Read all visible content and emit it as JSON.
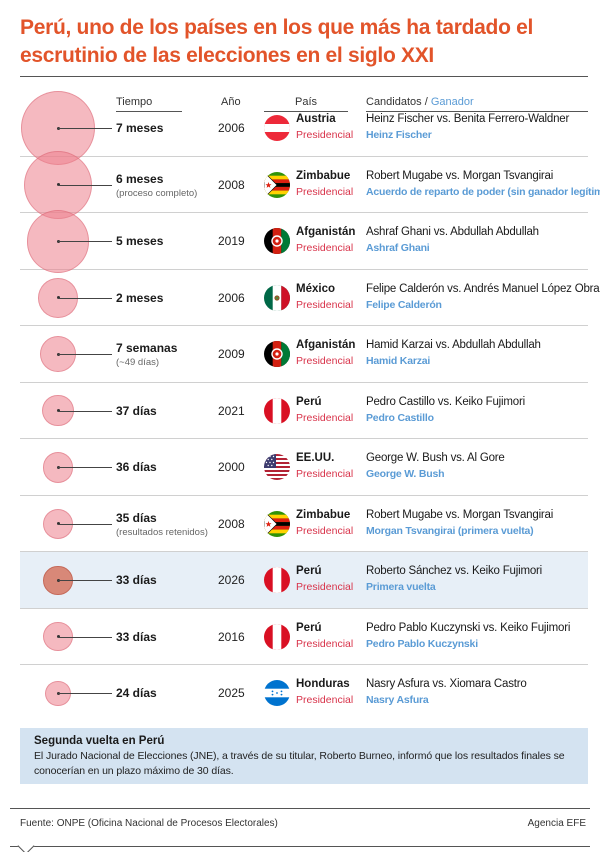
{
  "title": "Perú, uno de los países en los que más ha tardado el escrutinio de las elecciones en el siglo XXI",
  "columns": {
    "tiempo": "Tiempo",
    "anio": "Año",
    "pais": "País",
    "candidatos": "Candidatos /",
    "ganador": "Ganador"
  },
  "chart_data": {
    "type": "bubble",
    "title": "Perú, uno de los países en los que más ha tardado el escrutinio de las elecciones en el siglo XXI",
    "size_unit": "días",
    "rows": [
      {
        "time_label": "7 meses",
        "note": "",
        "days": 210,
        "year": "2006",
        "country": "Austria",
        "election": "Presidencial",
        "flag": "austria-flag-icon",
        "candidates": "Heinz Fischer vs. Benita Ferrero-Waldner",
        "winner": "Heinz Fischer",
        "highlight": false
      },
      {
        "time_label": "6 meses",
        "note": "(proceso completo)",
        "days": 180,
        "year": "2008",
        "country": "Zimbabue",
        "election": "Presidencial",
        "flag": "zimbabwe-flag-icon",
        "candidates": "Robert Mugabe vs. Morgan Tsvangirai",
        "winner": "Acuerdo de reparto de poder (sin ganador legítimo)",
        "highlight": false
      },
      {
        "time_label": "5 meses",
        "note": "",
        "days": 150,
        "year": "2019",
        "country": "Afganistán",
        "election": "Presidencial",
        "flag": "afghanistan-flag-icon",
        "candidates": "Ashraf Ghani vs. Abdullah Abdullah",
        "winner": "Ashraf Ghani",
        "highlight": false
      },
      {
        "time_label": "2 meses",
        "note": "",
        "days": 60,
        "year": "2006",
        "country": "México",
        "election": "Presidencial",
        "flag": "mexico-flag-icon",
        "candidates": "Felipe Calderón vs. Andrés Manuel López Obrador",
        "winner": "Felipe Calderón",
        "highlight": false
      },
      {
        "time_label": "7 semanas",
        "note": "(~49 días)",
        "days": 49,
        "year": "2009",
        "country": "Afganistán",
        "election": "Presidencial",
        "flag": "afghanistan-flag-icon",
        "candidates": "Hamid Karzai vs. Abdullah Abdullah",
        "winner": "Hamid Karzai",
        "highlight": false
      },
      {
        "time_label": "37 días",
        "note": "",
        "days": 37,
        "year": "2021",
        "country": "Perú",
        "election": "Presidencial",
        "flag": "peru-flag-icon",
        "candidates": "Pedro Castillo vs. Keiko Fujimori",
        "winner": "Pedro Castillo",
        "highlight": false
      },
      {
        "time_label": "36 días",
        "note": "",
        "days": 36,
        "year": "2000",
        "country": "EE.UU.",
        "election": "Presidencial",
        "flag": "usa-flag-icon",
        "candidates": "George W. Bush vs. Al Gore",
        "winner": "George W. Bush",
        "highlight": false
      },
      {
        "time_label": "35 días",
        "note": "(resultados retenidos)",
        "days": 35,
        "year": "2008",
        "country": "Zimbabue",
        "election": "Presidencial",
        "flag": "zimbabwe-flag-icon",
        "candidates": "Robert Mugabe vs. Morgan Tsvangirai",
        "winner": "Morgan Tsvangirai (primera vuelta)",
        "highlight": false
      },
      {
        "time_label": "33 días",
        "note": "",
        "days": 33,
        "year": "2026",
        "country": "Perú",
        "election": "Presidencial",
        "flag": "peru-flag-icon",
        "candidates": "Roberto Sánchez vs. Keiko Fujimori",
        "winner": "Primera vuelta",
        "highlight": true
      },
      {
        "time_label": "33 días",
        "note": "",
        "days": 33,
        "year": "2016",
        "country": "Perú",
        "election": "Presidencial",
        "flag": "peru-flag-icon",
        "candidates": "Pedro Pablo Kuczynski vs. Keiko Fujimori",
        "winner": "Pedro Pablo Kuczynski",
        "highlight": false
      },
      {
        "time_label": "24 días",
        "note": "",
        "days": 24,
        "year": "2025",
        "country": "Honduras",
        "election": "Presidencial",
        "flag": "honduras-flag-icon",
        "candidates": "Nasry Asfura vs. Xiomara Castro",
        "winner": "Nasry Asfura",
        "highlight": false
      }
    ]
  },
  "note": {
    "title": "Segunda vuelta en Perú",
    "text": "El Jurado Nacional de Elecciones (JNE), a través de su titular, Roberto Burneo, informó que los resultados finales se conocerían en un plazo máximo de 30 días."
  },
  "footer": {
    "source": "Fuente: ONPE (Oficina Nacional de Procesos Electorales)",
    "agency": "Agencia EFE"
  },
  "colors": {
    "title": "#e2542a",
    "bubble": "#ec808c",
    "bubble_current": "#d88878",
    "winner": "#5a9bd5",
    "election_type": "#d8334a",
    "highlight_row": "#e7eff7",
    "note_box": "#d4e3f1"
  }
}
